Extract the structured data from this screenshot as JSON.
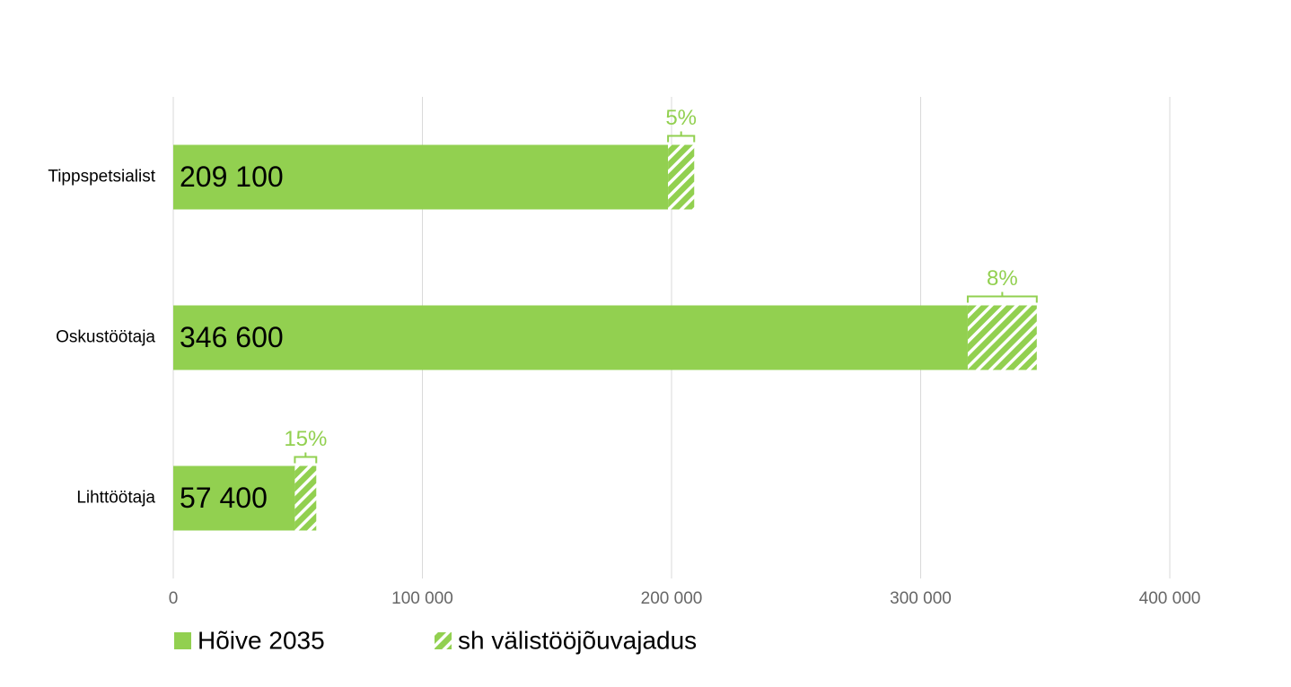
{
  "chart_data": {
    "type": "bar",
    "orientation": "horizontal",
    "stacked": true,
    "categories": [
      "Tippspetsialist",
      "Oskustöötaja",
      "Lihttöötaja"
    ],
    "series": [
      {
        "name": "Hõive 2035",
        "color": "#92d050",
        "pattern": "solid",
        "values": [
          198600,
          318900,
          48800
        ]
      },
      {
        "name": "sh välistööjõuvajadus",
        "color": "#92d050",
        "pattern": "hatch",
        "values": [
          10500,
          27700,
          8600
        ]
      }
    ],
    "totals": [
      209100,
      346600,
      57400
    ],
    "total_labels": [
      "209 100",
      "346 600",
      "57 400"
    ],
    "shares": [
      5,
      8,
      15
    ],
    "share_labels": [
      "5%",
      "8%",
      "15%"
    ],
    "xlim": [
      0,
      400000
    ],
    "xticks": [
      0,
      {
        "value": 100000,
        "label": "100 000"
      },
      {
        "value": 200000,
        "label": "200 000"
      },
      {
        "value": 300000,
        "label": "300 000"
      },
      {
        "value": 400000,
        "label": "400 000"
      }
    ],
    "grid": true
  }
}
